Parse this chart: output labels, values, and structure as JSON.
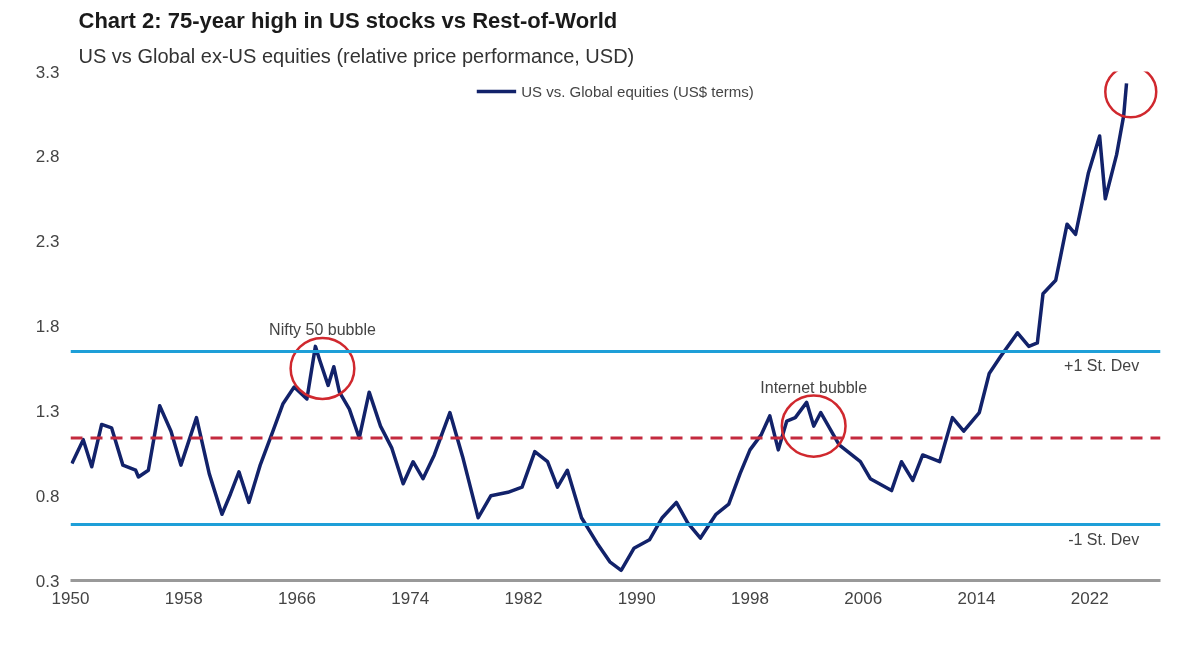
{
  "chart_data": {
    "type": "line",
    "title": "Chart 2: 75-year high in US stocks vs Rest-of-World",
    "subtitle": "US vs Global ex-US equities (relative price performance, USD)",
    "xlim": [
      1950,
      2027
    ],
    "xticks": [
      1950,
      1958,
      1966,
      1974,
      1982,
      1990,
      1998,
      2006,
      2014,
      2022
    ],
    "ylim": [
      0.3,
      3.3
    ],
    "yticks": [
      0.3,
      0.8,
      1.3,
      1.8,
      2.3,
      2.8,
      3.3
    ],
    "grid": false,
    "legend": "top",
    "marker": "none",
    "line_style": "solid",
    "series": [
      {
        "name": "US vs. Global equities (US$ terms)",
        "color": "#12226a",
        "x": [
          1950.1,
          1950.9,
          1951.5,
          1952.2,
          1952.9,
          1953.7,
          1954.6,
          1954.8,
          1955.5,
          1956.3,
          1957.1,
          1957.8,
          1958.9,
          1959.8,
          1960.7,
          1961.3,
          1961.9,
          1962.6,
          1963.4,
          1964.3,
          1965.0,
          1965.8,
          1966.7,
          1967.3,
          1967.6,
          1968.2,
          1968.6,
          1969.0,
          1969.7,
          1970.4,
          1971.1,
          1971.9,
          1972.7,
          1973.5,
          1974.2,
          1974.9,
          1975.7,
          1976.8,
          1977.7,
          1978.8,
          1979.7,
          1980.9,
          1981.9,
          1982.8,
          1983.7,
          1984.4,
          1985.1,
          1986.1,
          1987.2,
          1988.1,
          1988.9,
          1989.8,
          1990.9,
          1991.8,
          1992.8,
          1993.6,
          1994.5,
          1995.6,
          1996.5,
          1997.3,
          1998.0,
          1998.8,
          1999.4,
          2000.0,
          2000.6,
          2001.2,
          2002.0,
          2002.5,
          2003.0,
          2004.3,
          2005.8,
          2006.5,
          2008.0,
          2008.7,
          2009.5,
          2010.2,
          2011.4,
          2012.3,
          2013.1,
          2014.2,
          2014.9,
          2015.7,
          2016.9,
          2017.7,
          2018.3,
          2018.7,
          2019.6,
          2020.4,
          2021.0,
          2021.9,
          2022.7,
          2023.1,
          2023.9,
          2024.4,
          2024.6
        ],
        "values": [
          0.99,
          1.13,
          0.97,
          1.22,
          1.2,
          0.98,
          0.95,
          0.91,
          0.95,
          1.33,
          1.18,
          0.98,
          1.26,
          0.93,
          0.69,
          0.81,
          0.94,
          0.76,
          0.98,
          1.18,
          1.34,
          1.44,
          1.37,
          1.68,
          1.6,
          1.45,
          1.56,
          1.41,
          1.31,
          1.14,
          1.41,
          1.21,
          1.08,
          0.87,
          1.0,
          0.9,
          1.04,
          1.29,
          1.03,
          0.67,
          0.8,
          0.82,
          0.85,
          1.06,
          1.0,
          0.85,
          0.95,
          0.67,
          0.52,
          0.41,
          0.36,
          0.49,
          0.54,
          0.67,
          0.76,
          0.64,
          0.55,
          0.69,
          0.75,
          0.93,
          1.07,
          1.16,
          1.27,
          1.07,
          1.24,
          1.26,
          1.35,
          1.21,
          1.29,
          1.1,
          1.0,
          0.9,
          0.83,
          1.0,
          0.89,
          1.04,
          1.0,
          1.26,
          1.18,
          1.29,
          1.52,
          1.62,
          1.76,
          1.68,
          1.7,
          1.99,
          2.07,
          2.4,
          2.34,
          2.7,
          2.92,
          2.55,
          2.81,
          3.04,
          3.23
        ]
      }
    ],
    "ref_lines": [
      {
        "axis": "y",
        "value": 1.65,
        "label": "+1 St. Dev",
        "color": "#1e9fd8",
        "line_style": "solid"
      },
      {
        "axis": "y",
        "value": 1.14,
        "label": null,
        "color": "#c42a3e",
        "line_style": "dashed"
      },
      {
        "axis": "y",
        "value": 0.63,
        "label": "-1 St. Dev",
        "color": "#1e9fd8",
        "line_style": "solid"
      }
    ],
    "annotations": [
      {
        "text": "Nifty 50 bubble",
        "x": 1967.8,
        "y": 1.55
      },
      {
        "text": "Internet bubble",
        "x": 2002.5,
        "y": 1.21
      }
    ]
  }
}
